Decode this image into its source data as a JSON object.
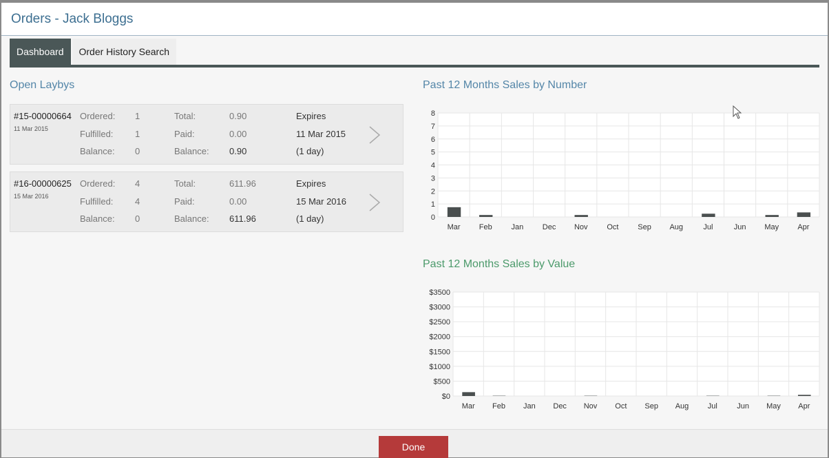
{
  "window": {
    "title": "Orders - Jack Bloggs"
  },
  "tabs": [
    {
      "label": "Dashboard",
      "active": true
    },
    {
      "label": "Order History Search",
      "active": false
    }
  ],
  "open_laybys": {
    "title": "Open Laybys",
    "items": [
      {
        "number": "#15-00000664",
        "date": "11 Mar 2015",
        "ordered_label": "Ordered:",
        "ordered": "1",
        "fulfilled_label": "Fulfilled:",
        "fulfilled": "1",
        "balance_qty_label": "Balance:",
        "balance_qty": "0",
        "total_label": "Total:",
        "total": "0.90",
        "paid_label": "Paid:",
        "paid": "0.00",
        "balance_label": "Balance:",
        "balance": "0.90",
        "expires_label": "Expires",
        "expires_date": "11 Mar 2015",
        "expires_in": "(1 day)"
      },
      {
        "number": "#16-00000625",
        "date": "15 Mar 2016",
        "ordered_label": "Ordered:",
        "ordered": "4",
        "fulfilled_label": "Fulfilled:",
        "fulfilled": "4",
        "balance_qty_label": "Balance:",
        "balance_qty": "0",
        "total_label": "Total:",
        "total": "611.96",
        "paid_label": "Paid:",
        "paid": "0.00",
        "balance_label": "Balance:",
        "balance": "611.96",
        "expires_label": "Expires",
        "expires_date": "15 Mar 2016",
        "expires_in": "(1 day)"
      }
    ]
  },
  "chart_data": [
    {
      "type": "bar",
      "title": "Past 12 Months Sales by Number",
      "categories": [
        "Mar",
        "Feb",
        "Jan",
        "Dec",
        "Nov",
        "Oct",
        "Sep",
        "Aug",
        "Jul",
        "Jun",
        "May",
        "Apr"
      ],
      "values": [
        0.75,
        0.15,
        0,
        0,
        0.15,
        0,
        0,
        0,
        0.25,
        0,
        0.15,
        0.35
      ],
      "ylim": [
        0,
        8
      ],
      "yticks": [
        "0",
        "1",
        "2",
        "3",
        "4",
        "5",
        "6",
        "7",
        "8"
      ],
      "grid": true,
      "bar_color": "#4a4f4f"
    },
    {
      "type": "bar",
      "title": "Past 12 Months Sales by Value",
      "categories": [
        "Mar",
        "Feb",
        "Jan",
        "Dec",
        "Nov",
        "Oct",
        "Sep",
        "Aug",
        "Jul",
        "Jun",
        "May",
        "Apr"
      ],
      "values": [
        130,
        10,
        0,
        0,
        10,
        0,
        0,
        0,
        10,
        0,
        10,
        40
      ],
      "ylim": [
        0,
        3500
      ],
      "yticks": [
        "$0",
        "$500",
        "$1000",
        "$1500",
        "$2000",
        "$2500",
        "$3000",
        "$3500"
      ],
      "grid": true,
      "bar_color": "#4a4f4f"
    }
  ],
  "footer": {
    "done_label": "Done"
  }
}
